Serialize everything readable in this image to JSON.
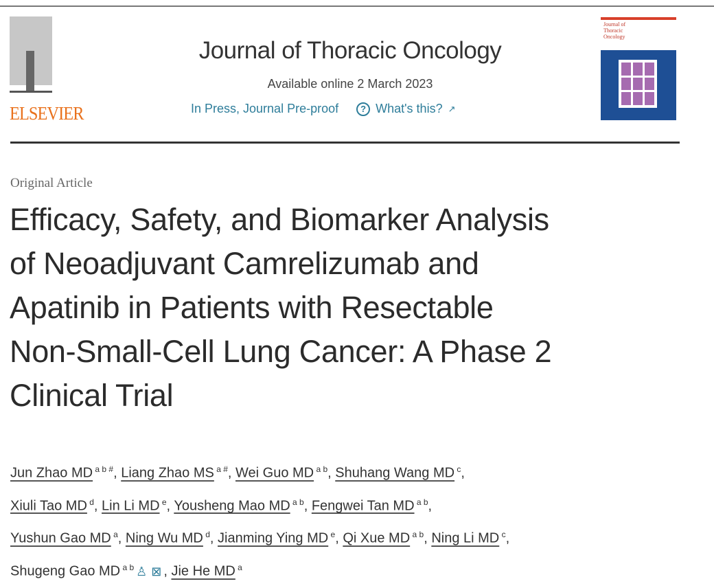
{
  "publisher": {
    "name": "ELSEVIER",
    "brand_color": "#e9711c"
  },
  "journal": {
    "title": "Journal of Thoracic Oncology",
    "available": "Available online 2 March 2023",
    "status": "In Press, Journal Pre-proof",
    "whats_this": "What's this?",
    "link_color": "#2e7d9a"
  },
  "cover": {
    "title_lines": [
      "Journal of",
      "Thoracic",
      "Oncology"
    ]
  },
  "article": {
    "type": "Original Article",
    "title_lines": [
      "Efficacy, Safety, and Biomarker Analysis",
      "of Neoadjuvant Camrelizumab and",
      "Apatinib in Patients with Resectable",
      "Non-Small-Cell Lung Cancer: A Phase 2",
      "Clinical Trial"
    ]
  },
  "authors": [
    {
      "name": "Jun Zhao MD",
      "sup": "a b #"
    },
    {
      "name": "Liang Zhao MS",
      "sup": "a #"
    },
    {
      "name": "Wei Guo MD",
      "sup": "a b"
    },
    {
      "name": "Shuhang Wang MD",
      "sup": "c"
    },
    {
      "name": "Xiuli Tao MD",
      "sup": "d"
    },
    {
      "name": "Lin Li MD",
      "sup": "e"
    },
    {
      "name": "Yousheng Mao MD",
      "sup": "a b"
    },
    {
      "name": "Fengwei Tan MD",
      "sup": "a b"
    },
    {
      "name": "Yushun Gao MD",
      "sup": "a"
    },
    {
      "name": "Ning Wu MD",
      "sup": "d"
    },
    {
      "name": "Jianming Ying MD",
      "sup": "e"
    },
    {
      "name": "Qi Xue MD",
      "sup": "a b"
    },
    {
      "name": "Ning Li MD",
      "sup": "c"
    },
    {
      "name": "Shugeng Gao MD",
      "sup": "a b",
      "icons": [
        "person-icon",
        "mail-icon"
      ]
    },
    {
      "name": "Jie He MD",
      "sup": "a"
    }
  ]
}
